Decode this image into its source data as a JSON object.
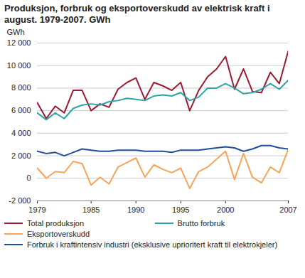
{
  "chart_data": {
    "type": "line",
    "title": "Produksjon, forbruk og eksportoverskudd av elektrisk kraft i august. 1979-2007. GWh",
    "y_label": "GWh",
    "x": [
      1979,
      1980,
      1981,
      1982,
      1983,
      1984,
      1985,
      1986,
      1987,
      1988,
      1989,
      1990,
      1991,
      1992,
      1993,
      1994,
      1995,
      1996,
      1997,
      1998,
      1999,
      2000,
      2001,
      2002,
      2003,
      2004,
      2005,
      2006,
      2007
    ],
    "series": [
      {
        "name": "Total produksjon",
        "color": "#9b1b30",
        "values": [
          6700,
          5300,
          6400,
          5800,
          7800,
          7800,
          6000,
          6600,
          6300,
          7900,
          8500,
          8900,
          7000,
          8500,
          8200,
          7800,
          8500,
          6000,
          7800,
          9000,
          9700,
          10800,
          7900,
          9700,
          7700,
          7600,
          9400,
          8400,
          11300
        ]
      },
      {
        "name": "Brutto forbruk",
        "color": "#2fa4a6",
        "values": [
          5800,
          5200,
          5800,
          5300,
          6200,
          6500,
          6600,
          6500,
          6800,
          6900,
          7100,
          7000,
          6900,
          7300,
          7400,
          7300,
          7600,
          6900,
          7200,
          8000,
          8000,
          8400,
          8000,
          7500,
          7600,
          7900,
          8400,
          7900,
          8700
        ]
      },
      {
        "name": "Eksportoverskudd",
        "color": "#f5a55a",
        "values": [
          900,
          0,
          600,
          500,
          1500,
          1300,
          -600,
          100,
          -500,
          1000,
          1400,
          1800,
          100,
          1200,
          800,
          500,
          900,
          -900,
          600,
          1000,
          1700,
          2400,
          -100,
          2200,
          100,
          -400,
          1000,
          500,
          2600
        ]
      },
      {
        "name": "Forbruk i kraftintensiv industri (eksklusive uprioritert kraft til elektrokjeler)",
        "color": "#1f4e9c",
        "values": [
          2400,
          2200,
          2300,
          2000,
          2300,
          2600,
          2500,
          2400,
          2400,
          2500,
          2500,
          2500,
          2400,
          2400,
          2400,
          2300,
          2500,
          2500,
          2500,
          2600,
          2700,
          2800,
          2700,
          2400,
          2600,
          2900,
          2900,
          2700,
          2600
        ]
      }
    ],
    "xlim": [
      1979,
      2007
    ],
    "xticks": [
      1979,
      1985,
      1990,
      1995,
      2000,
      2007
    ],
    "ylim": [
      -2000,
      12000
    ],
    "yticks": [
      {
        "value": -2000,
        "label": "-2 000"
      },
      0,
      {
        "value": 2000,
        "label": "2 000"
      },
      {
        "value": 4000,
        "label": "4 000"
      },
      {
        "value": 6000,
        "label": "6 000"
      },
      {
        "value": 8000,
        "label": "8 000"
      },
      {
        "value": 10000,
        "label": "10 000"
      },
      {
        "value": 12000,
        "label": "12 000"
      }
    ],
    "grid": true,
    "legend": "bottom"
  }
}
